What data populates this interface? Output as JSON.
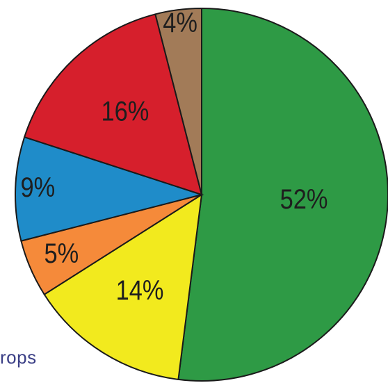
{
  "chart_data": {
    "type": "pie",
    "values": [
      52,
      14,
      5,
      9,
      16,
      4
    ],
    "labels": [
      "52%",
      "14%",
      "5%",
      "9%",
      "16%",
      "4%"
    ],
    "colors": [
      "#2e9a45",
      "#f2ea1e",
      "#f58a3a",
      "#1f8cc9",
      "#d61f2c",
      "#a27b58"
    ],
    "start": "12 o'clock",
    "direction": "clockwise"
  },
  "caption_fragment": "rops"
}
